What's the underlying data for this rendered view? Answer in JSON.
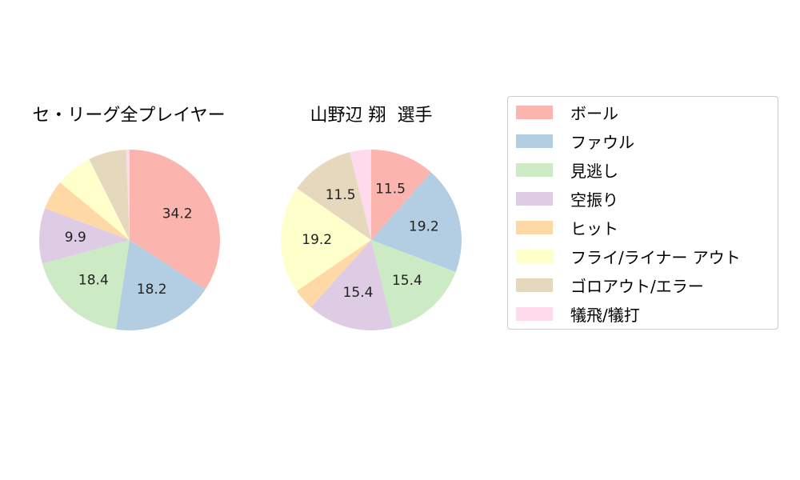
{
  "colors": [
    "#fbb4ae",
    "#b3cde3",
    "#ccebc5",
    "#decbe4",
    "#fed9a6",
    "#ffffcc",
    "#e5d8bd",
    "#fddaec"
  ],
  "legend": {
    "labels": [
      "ボール",
      "ファウル",
      "見逃し",
      "空振り",
      "ヒット",
      "フライ/ライナー アウト",
      "ゴロアウト/エラー",
      "犠飛/犠打"
    ]
  },
  "chart_data": [
    {
      "type": "pie",
      "title": "セ・リーグ全プレイヤー",
      "categories": [
        "ボール",
        "ファウル",
        "見逃し",
        "空振り",
        "ヒット",
        "フライ/ライナー アウト",
        "ゴロアウト/エラー",
        "犠飛/犠打"
      ],
      "values": [
        34.2,
        18.2,
        18.4,
        9.9,
        5.3,
        6.6,
        6.8,
        0.6
      ],
      "value_labels": [
        "34.2",
        "18.2",
        "18.4",
        "9.9",
        "",
        "",
        "",
        ""
      ],
      "start_angle": 90,
      "direction": "clockwise"
    },
    {
      "type": "pie",
      "title": "山野辺 翔  選手",
      "categories": [
        "ボール",
        "ファウル",
        "見逃し",
        "空振り",
        "ヒット",
        "フライ/ライナー アウト",
        "ゴロアウト/エラー",
        "犠飛/犠打"
      ],
      "values": [
        11.5,
        19.2,
        15.4,
        15.4,
        3.8,
        19.2,
        11.5,
        3.8
      ],
      "value_labels": [
        "11.5",
        "19.2",
        "15.4",
        "15.4",
        "",
        "19.2",
        "11.5",
        ""
      ],
      "start_angle": 90,
      "direction": "clockwise"
    }
  ]
}
